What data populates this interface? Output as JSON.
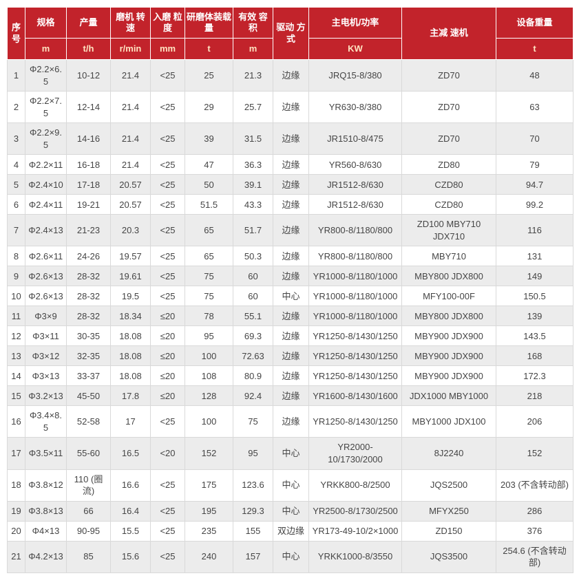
{
  "table": {
    "header": {
      "seq": "序号",
      "spec": "规格",
      "spec_unit": "m",
      "output": "产量",
      "output_unit": "t/h",
      "speed": "磨机 转速",
      "speed_unit": "r/min",
      "feed": "入磨 粒度",
      "feed_unit": "mm",
      "media": "研磨体装载量",
      "media_unit": "t",
      "volume": "有效 容积",
      "volume_unit": "m",
      "drive": "驱动 方式",
      "motor": "主电机/功率",
      "motor_unit": "KW",
      "reducer": "主减 速机",
      "weight": "设备重量",
      "weight_unit": "t"
    },
    "column_names": [
      "cell-seq",
      "cell-spec",
      "cell-output",
      "cell-speed",
      "cell-feed-size",
      "cell-media-load",
      "cell-volume",
      "cell-drive-type",
      "cell-motor-power",
      "cell-reducer",
      "cell-weight"
    ],
    "rows": [
      [
        "1",
        "Φ2.2×6.5",
        "10-12",
        "21.4",
        "<25",
        "25",
        "21.3",
        "边缘",
        "JRQ15-8/380",
        "ZD70",
        "48"
      ],
      [
        "2",
        "Φ2.2×7.5",
        "12-14",
        "21.4",
        "<25",
        "29",
        "25.7",
        "边缘",
        "YR630-8/380",
        "ZD70",
        "63"
      ],
      [
        "3",
        "Φ2.2×9.5",
        "14-16",
        "21.4",
        "<25",
        "39",
        "31.5",
        "边缘",
        "JR1510-8/475",
        "ZD70",
        "70"
      ],
      [
        "4",
        "Φ2.2×11",
        "16-18",
        "21.4",
        "<25",
        "47",
        "36.3",
        "边缘",
        "YR560-8/630",
        "ZD80",
        "79"
      ],
      [
        "5",
        "Φ2.4×10",
        "17-18",
        "20.57",
        "<25",
        "50",
        "39.1",
        "边缘",
        "JR1512-8/630",
        "CZD80",
        "94.7"
      ],
      [
        "6",
        "Φ2.4×11",
        "19-21",
        "20.57",
        "<25",
        "51.5",
        "43.3",
        "边缘",
        "JR1512-8/630",
        "CZD80",
        "99.2"
      ],
      [
        "7",
        "Φ2.4×13",
        "21-23",
        "20.3",
        "<25",
        "65",
        "51.7",
        "边缘",
        "YR800-8/1180/800",
        "ZD100 MBY710 JDX710",
        "116"
      ],
      [
        "8",
        "Φ2.6×11",
        "24-26",
        "19.57",
        "<25",
        "65",
        "50.3",
        "边缘",
        "YR800-8/1180/800",
        "MBY710",
        "131"
      ],
      [
        "9",
        "Φ2.6×13",
        "28-32",
        "19.61",
        "<25",
        "75",
        "60",
        "边缘",
        "YR1000-8/1180/1000",
        "MBY800 JDX800",
        "149"
      ],
      [
        "10",
        "Φ2.6×13",
        "28-32",
        "19.5",
        "<25",
        "75",
        "60",
        "中心",
        "YR1000-8/1180/1000",
        "MFY100-00F",
        "150.5"
      ],
      [
        "11",
        "Φ3×9",
        "28-32",
        "18.34",
        "≤20",
        "78",
        "55.1",
        "边缘",
        "YR1000-8/1180/1000",
        "MBY800 JDX800",
        "139"
      ],
      [
        "12",
        "Φ3×11",
        "30-35",
        "18.08",
        "≤20",
        "95",
        "69.3",
        "边缘",
        "YR1250-8/1430/1250",
        "MBY900 JDX900",
        "143.5"
      ],
      [
        "13",
        "Φ3×12",
        "32-35",
        "18.08",
        "≤20",
        "100",
        "72.63",
        "边缘",
        "YR1250-8/1430/1250",
        "MBY900 JDX900",
        "168"
      ],
      [
        "14",
        "Φ3×13",
        "33-37",
        "18.08",
        "≤20",
        "108",
        "80.9",
        "边缘",
        "YR1250-8/1430/1250",
        "MBY900 JDX900",
        "172.3"
      ],
      [
        "15",
        "Φ3.2×13",
        "45-50",
        "17.8",
        "≤20",
        "128",
        "92.4",
        "边缘",
        "YR1600-8/1430/1600",
        "JDX1000 MBY1000",
        "218"
      ],
      [
        "16",
        "Φ3.4×8.5",
        "52-58",
        "17",
        "<25",
        "100",
        "75",
        "边缘",
        "YR1250-8/1430/1250",
        "MBY1000 JDX100",
        "206"
      ],
      [
        "17",
        "Φ3.5×11",
        "55-60",
        "16.5",
        "<20",
        "152",
        "95",
        "中心",
        "YR2000-10/1730/2000",
        "8J2240",
        "152"
      ],
      [
        "18",
        "Φ3.8×12",
        "110 (圈流)",
        "16.6",
        "<25",
        "175",
        "123.6",
        "中心",
        "YRKK800-8/2500",
        "JQS2500",
        "203 (不含转动部)"
      ],
      [
        "19",
        "Φ3.8×13",
        "66",
        "16.4",
        "<25",
        "195",
        "129.3",
        "中心",
        "YR2500-8/1730/2500",
        "MFYX250",
        "286"
      ],
      [
        "20",
        "Φ4×13",
        "90-95",
        "15.5",
        "<25",
        "235",
        "155",
        "双边缘",
        "YR173-49-10/2×1000",
        "ZD150",
        "376"
      ],
      [
        "21",
        "Φ4.2×13",
        "85",
        "15.6",
        "<25",
        "240",
        "157",
        "中心",
        "YRKK1000-8/3550",
        "JQS3500",
        "254.6 (不含转动部)"
      ]
    ]
  }
}
